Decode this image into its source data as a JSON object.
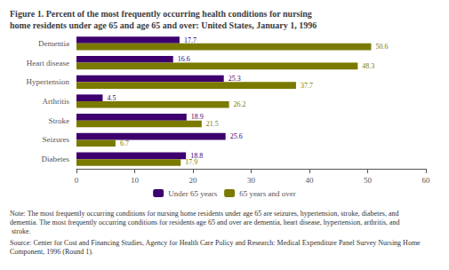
{
  "chart_data": {
    "type": "bar",
    "orientation": "horizontal",
    "title": "Figure 1. Percent of the most frequently occurring health conditions for nursing\nhome residents under age 65 and age 65 and over: United States, January 1, 1996",
    "categories": [
      "Diabetes",
      "Seizures",
      "Stroke",
      "Arthritis",
      "Hypertension",
      "Heart disease",
      "Dementia"
    ],
    "series": [
      {
        "name": "Under 65 years",
        "color": "#3d006e",
        "values": [
          18.8,
          25.6,
          18.9,
          4.5,
          25.3,
          16.6,
          17.7
        ]
      },
      {
        "name": "65 years and over",
        "color": "#7a7a00",
        "values": [
          17.9,
          6.7,
          21.5,
          26.2,
          37.7,
          48.3,
          50.6
        ]
      }
    ],
    "xlim": [
      0,
      60
    ],
    "xticks": [
      0,
      10,
      20,
      30,
      40,
      50,
      60
    ],
    "grid": false,
    "legend": "bottom",
    "data_labels": true,
    "annotations": [
      "Note: The most frequently occurring conditions for nursing home residents under age 65 are seizures, hypertension, stroke, diabetes, and dementia. The most frequently occurring conditions for residents age 65 and over are dementia, heart disease, hypertension, arthritis, and stroke.",
      "Source: Center for Cost and Financing Studies, Agency for Health Care Policy and Research: Medical Expenditure Panel Survey Nursing Home Component, 1996 (Round 1)."
    ]
  }
}
